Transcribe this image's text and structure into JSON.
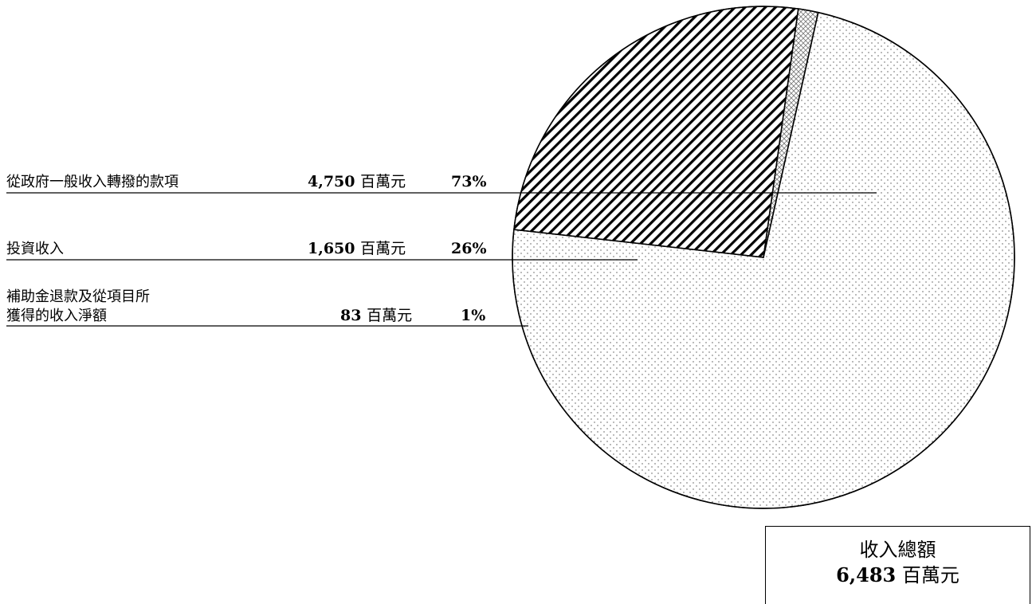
{
  "chart_data": {
    "type": "pie",
    "slices": [
      {
        "label": "從政府一般收入轉撥的款項",
        "value": 4750,
        "value_text": "4,750",
        "unit": "百萬元",
        "percent": "73%",
        "pattern": "dots"
      },
      {
        "label": "投資收入",
        "value": 1650,
        "value_text": "1,650",
        "unit": "百萬元",
        "percent": "26%",
        "pattern": "diagonal-hatch"
      },
      {
        "label_line1": "補助金退款及從項目所",
        "label_line2": "獲得的收入淨額",
        "value": 83,
        "value_text": "83",
        "unit": "百萬元",
        "percent": "1%",
        "pattern": "crosshatch"
      }
    ],
    "total": {
      "title": "收入總額",
      "value_text": "6,483",
      "unit": "百萬元"
    }
  }
}
